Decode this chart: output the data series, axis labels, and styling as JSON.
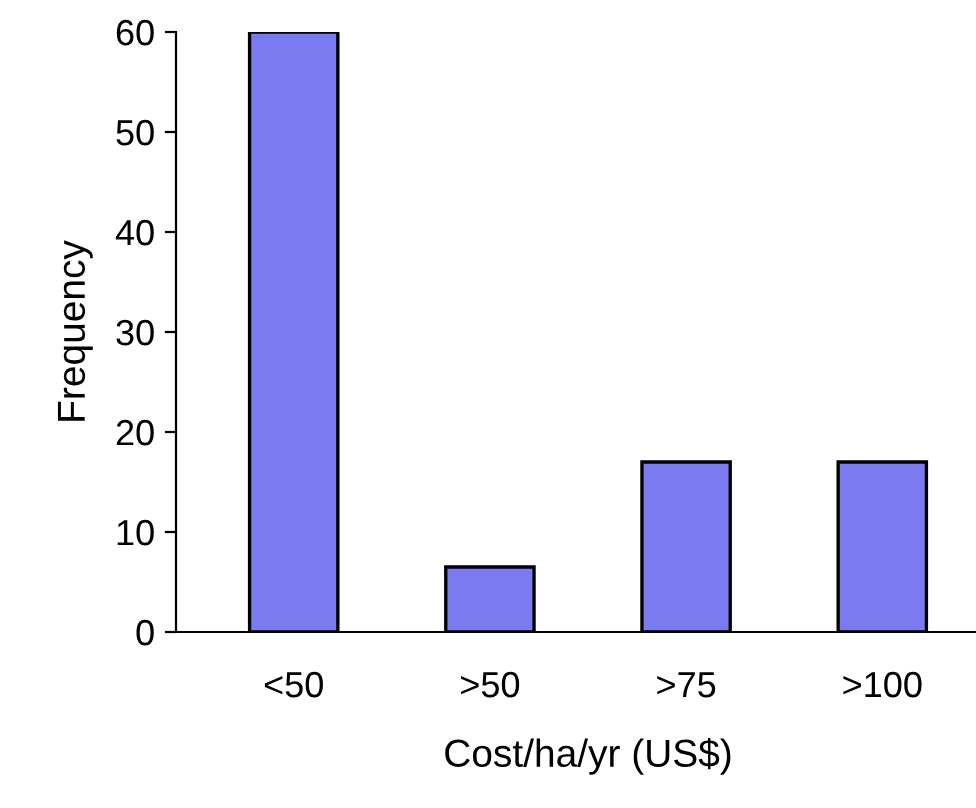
{
  "chart_data": {
    "type": "bar",
    "xlabel": "Cost/ha/yr (US$)",
    "ylabel": "Frequency",
    "categories": [
      "<50",
      ">50",
      ">75",
      ">100"
    ],
    "values": [
      60,
      6.5,
      17,
      17
    ],
    "color": "#7b7bf0",
    "ylim": [
      0,
      60
    ],
    "yticks": [
      0,
      10,
      20,
      30,
      40,
      50,
      60
    ],
    "grid": false,
    "legend": false
  }
}
